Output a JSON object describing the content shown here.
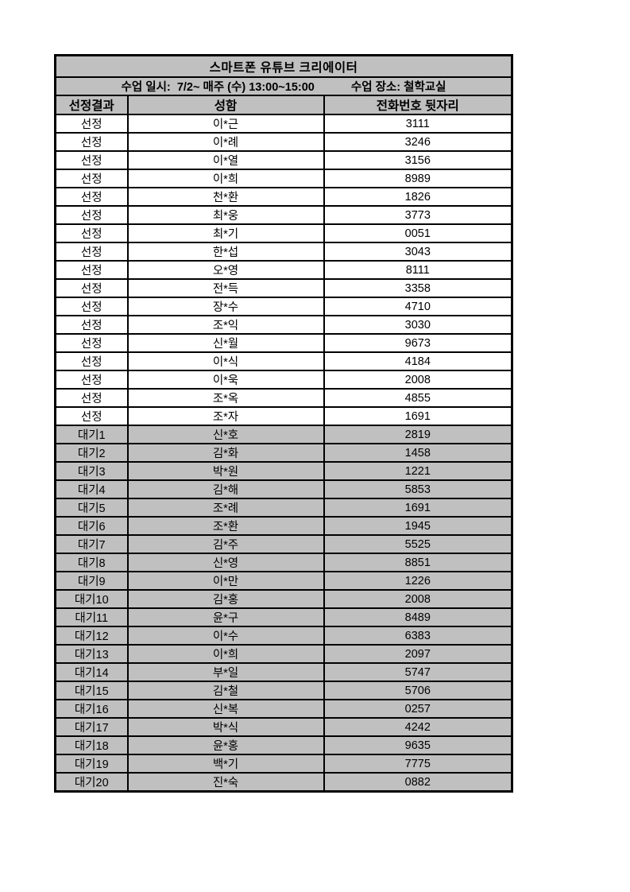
{
  "document": {
    "title": "스마트폰 유튜브 크리에이터",
    "schedule": "수업 일시:  7/2~ 매주 (수) 13:00~15:00",
    "location": "수업 장소: 철학교실",
    "columns": [
      "선정결과",
      "성함",
      "전화번호 뒷자리"
    ],
    "rows": [
      {
        "result": "선정",
        "name": "이*근",
        "phone": "3111"
      },
      {
        "result": "선정",
        "name": "이*례",
        "phone": "3246"
      },
      {
        "result": "선정",
        "name": "이*열",
        "phone": "3156"
      },
      {
        "result": "선정",
        "name": "이*희",
        "phone": "8989"
      },
      {
        "result": "선정",
        "name": "천*환",
        "phone": "1826"
      },
      {
        "result": "선정",
        "name": "최*웅",
        "phone": "3773"
      },
      {
        "result": "선정",
        "name": "최*기",
        "phone": "0051"
      },
      {
        "result": "선정",
        "name": "한*섭",
        "phone": "3043"
      },
      {
        "result": "선정",
        "name": "오*영",
        "phone": "8111"
      },
      {
        "result": "선정",
        "name": "전*득",
        "phone": "3358"
      },
      {
        "result": "선정",
        "name": "장*수",
        "phone": "4710"
      },
      {
        "result": "선정",
        "name": "조*익",
        "phone": "3030"
      },
      {
        "result": "선정",
        "name": "신*월",
        "phone": "9673"
      },
      {
        "result": "선정",
        "name": "이*식",
        "phone": "4184"
      },
      {
        "result": "선정",
        "name": "이*욱",
        "phone": "2008"
      },
      {
        "result": "선정",
        "name": "조*옥",
        "phone": "4855"
      },
      {
        "result": "선정",
        "name": "조*자",
        "phone": "1691"
      },
      {
        "result": "대기1",
        "name": "신*호",
        "phone": "2819"
      },
      {
        "result": "대기2",
        "name": "김*화",
        "phone": "1458"
      },
      {
        "result": "대기3",
        "name": "박*원",
        "phone": "1221"
      },
      {
        "result": "대기4",
        "name": "김*해",
        "phone": "5853"
      },
      {
        "result": "대기5",
        "name": "조*례",
        "phone": "1691"
      },
      {
        "result": "대기6",
        "name": "조*환",
        "phone": "1945"
      },
      {
        "result": "대기7",
        "name": "김*주",
        "phone": "5525"
      },
      {
        "result": "대기8",
        "name": "신*영",
        "phone": "8851"
      },
      {
        "result": "대기9",
        "name": "이*만",
        "phone": "1226"
      },
      {
        "result": "대기10",
        "name": "김*홍",
        "phone": "2008"
      },
      {
        "result": "대기11",
        "name": "윤*구",
        "phone": "8489"
      },
      {
        "result": "대기12",
        "name": "이*수",
        "phone": "6383"
      },
      {
        "result": "대기13",
        "name": "이*희",
        "phone": "2097"
      },
      {
        "result": "대기14",
        "name": "부*일",
        "phone": "5747"
      },
      {
        "result": "대기15",
        "name": "김*철",
        "phone": "5706"
      },
      {
        "result": "대기16",
        "name": "신*복",
        "phone": "0257"
      },
      {
        "result": "대기17",
        "name": "박*식",
        "phone": "4242"
      },
      {
        "result": "대기18",
        "name": "윤*홍",
        "phone": "9635"
      },
      {
        "result": "대기19",
        "name": "백*기",
        "phone": "7775"
      },
      {
        "result": "대기20",
        "name": "진*숙",
        "phone": "0882"
      }
    ],
    "colors": {
      "shaded_bg": "#c0c0c0",
      "row_bg": "#ffffff",
      "border": "#000000",
      "text": "#000000",
      "page_bg": "#ffffff"
    }
  }
}
